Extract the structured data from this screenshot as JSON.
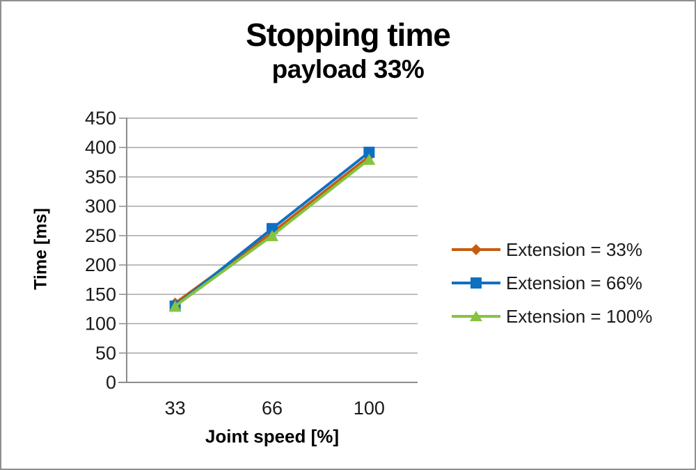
{
  "chart_data": {
    "type": "line",
    "title": "Stopping time",
    "subtitle": "payload 33%",
    "xlabel": "Joint speed [%]",
    "ylabel": "Time [ms]",
    "categories": [
      "33",
      "66",
      "100"
    ],
    "series": [
      {
        "name": "Extension = 33%",
        "marker": "diamond",
        "color": "#C75B11",
        "values": [
          135,
          255,
          385
        ]
      },
      {
        "name": "Extension = 66%",
        "marker": "square",
        "color": "#0F70C2",
        "values": [
          130,
          262,
          392
        ]
      },
      {
        "name": "Extension = 100%",
        "marker": "triangle",
        "color": "#85C441",
        "values": [
          130,
          250,
          380
        ]
      }
    ],
    "ylim": [
      0,
      450
    ],
    "ytick_step": 50,
    "grid": true,
    "legend_position": "right"
  },
  "colors": {
    "gridline": "#A6A6A6",
    "axis": "#8C8C8C",
    "tick_text": "#1a1a1a",
    "background": "#FFFFFF",
    "frame_border": "#8F8F8F"
  }
}
